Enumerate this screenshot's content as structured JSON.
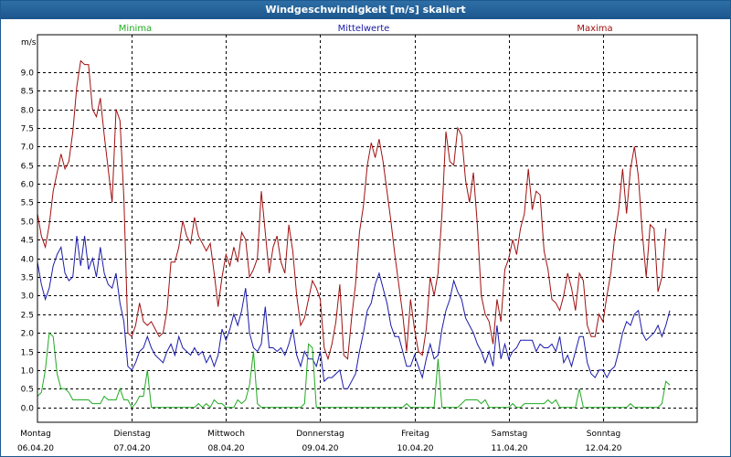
{
  "window": {
    "title": "Windgeschwindigkeit [m/s] skaliert"
  },
  "legend": {
    "min": "Minima",
    "mean": "Mittelwerte",
    "max": "Maxima"
  },
  "colors": {
    "min": "#22aa22",
    "mean": "#1a1aaa",
    "max": "#a01010",
    "grid": "#000000",
    "title_bar": "#1c578d"
  },
  "chart_data": {
    "type": "line",
    "ylabel": "m/s",
    "ylim": [
      -0.4,
      10.0
    ],
    "y_ticks": [
      "0.0",
      "0.5",
      "1.0",
      "1.5",
      "2.0",
      "2.5",
      "3.0",
      "3.5",
      "4.0",
      "4.5",
      "5.0",
      "5.5",
      "6.0",
      "6.5",
      "7.0",
      "7.5",
      "8.0",
      "8.5",
      "9.0"
    ],
    "xlim": [
      0,
      7.0
    ],
    "day_labels": [
      {
        "day": "Montag",
        "date": "06.04.20"
      },
      {
        "day": "Dienstag",
        "date": "07.04.20"
      },
      {
        "day": "Mittwoch",
        "date": "08.04.20"
      },
      {
        "day": "Donnerstag",
        "date": "09.04.20"
      },
      {
        "day": "Freitag",
        "date": "10.04.20"
      },
      {
        "day": "Samstag",
        "date": "11.04.20"
      },
      {
        "day": "Sonntag",
        "date": "12.04.20"
      }
    ],
    "grid": true,
    "series": [
      {
        "name": "Maxima",
        "key": "max",
        "x_step_days": 0.04167,
        "values": [
          5.2,
          4.6,
          4.3,
          4.9,
          5.8,
          6.3,
          6.8,
          6.4,
          6.6,
          7.4,
          8.6,
          9.3,
          9.2,
          9.2,
          8.0,
          7.8,
          8.3,
          7.3,
          6.4,
          5.5,
          8.0,
          7.7,
          5.6,
          2.0,
          1.9,
          2.2,
          2.8,
          2.3,
          2.2,
          2.3,
          2.1,
          1.9,
          2.0,
          2.6,
          3.9,
          3.9,
          4.3,
          5.0,
          4.6,
          4.4,
          5.1,
          4.6,
          4.4,
          4.2,
          4.4,
          3.6,
          2.7,
          3.5,
          4.1,
          3.8,
          4.3,
          3.9,
          4.7,
          4.5,
          3.5,
          3.7,
          4.0,
          5.8,
          4.7,
          3.6,
          4.3,
          4.6,
          3.9,
          3.6,
          4.9,
          4.2,
          3.0,
          2.2,
          2.4,
          2.9,
          3.4,
          3.2,
          2.9,
          1.6,
          1.3,
          1.7,
          2.3,
          3.3,
          1.4,
          1.3,
          2.4,
          3.3,
          4.7,
          5.4,
          6.5,
          7.1,
          6.7,
          7.2,
          6.6,
          5.8,
          5.0,
          4.1,
          3.3,
          2.5,
          1.5,
          2.9,
          2.1,
          1.5,
          1.4,
          2.1,
          3.5,
          3.0,
          3.6,
          5.2,
          7.4,
          6.6,
          6.5,
          7.5,
          7.3,
          6.1,
          5.5,
          6.3,
          4.9,
          3.0,
          2.5,
          2.3,
          1.7,
          2.9,
          2.3,
          3.7,
          4.0,
          4.5,
          4.1,
          4.8,
          5.2,
          6.4,
          5.3,
          5.8,
          5.7,
          4.2,
          3.7,
          2.9,
          2.8,
          2.6,
          3.0,
          3.6,
          3.2,
          2.6,
          3.6,
          3.4,
          2.2,
          1.9,
          1.9,
          2.5,
          2.3,
          3.0,
          3.6,
          4.6,
          5.3,
          6.4,
          5.2,
          6.4,
          7.0,
          6.2,
          4.7,
          3.5,
          4.9,
          4.8,
          3.1,
          3.5,
          4.8
        ]
      },
      {
        "name": "Mittelwerte",
        "key": "mean",
        "x_step_days": 0.04167,
        "values": [
          3.9,
          3.3,
          2.9,
          3.2,
          3.8,
          4.1,
          4.3,
          3.6,
          3.4,
          3.5,
          4.6,
          3.8,
          4.6,
          3.7,
          4.0,
          3.5,
          4.3,
          3.6,
          3.3,
          3.2,
          3.6,
          2.8,
          2.3,
          1.1,
          1.0,
          1.2,
          1.5,
          1.6,
          1.9,
          1.6,
          1.4,
          1.3,
          1.2,
          1.5,
          1.7,
          1.4,
          1.9,
          1.6,
          1.5,
          1.4,
          1.6,
          1.4,
          1.5,
          1.2,
          1.4,
          1.1,
          1.4,
          2.1,
          1.8,
          2.1,
          2.5,
          2.2,
          2.6,
          3.2,
          2.0,
          1.6,
          1.5,
          1.7,
          2.7,
          1.6,
          1.6,
          1.5,
          1.6,
          1.4,
          1.7,
          2.1,
          1.4,
          1.1,
          1.5,
          1.3,
          1.3,
          1.1,
          1.5,
          0.7,
          0.8,
          0.8,
          0.9,
          1.0,
          0.5,
          0.5,
          0.7,
          0.9,
          1.5,
          2.0,
          2.6,
          2.8,
          3.3,
          3.6,
          3.2,
          2.8,
          2.2,
          1.9,
          1.9,
          1.5,
          1.1,
          1.1,
          1.4,
          1.1,
          0.8,
          1.3,
          1.7,
          1.3,
          1.4,
          2.1,
          2.6,
          2.9,
          3.4,
          3.1,
          2.9,
          2.4,
          2.2,
          2.0,
          1.7,
          1.5,
          1.2,
          1.5,
          1.1,
          2.2,
          1.3,
          1.7,
          1.3,
          1.5,
          1.6,
          1.8,
          1.8,
          1.8,
          1.8,
          1.5,
          1.7,
          1.6,
          1.6,
          1.7,
          1.5,
          1.9,
          1.2,
          1.4,
          1.1,
          1.5,
          1.9,
          1.9,
          1.2,
          0.9,
          0.8,
          1.0,
          1.0,
          0.8,
          1.0,
          1.1,
          1.5,
          2.0,
          2.3,
          2.2,
          2.5,
          2.6,
          2.0,
          1.8,
          1.9,
          2.0,
          2.2,
          1.9,
          2.2,
          2.6
        ]
      },
      {
        "name": "Minima",
        "key": "min",
        "x_step_days": 0.04167,
        "values": [
          0.3,
          0.4,
          1.0,
          2.0,
          1.9,
          0.9,
          0.5,
          0.5,
          0.4,
          0.2,
          0.2,
          0.2,
          0.2,
          0.2,
          0.1,
          0.1,
          0.1,
          0.3,
          0.2,
          0.2,
          0.2,
          0.5,
          0.2,
          0.2,
          0.0,
          0.1,
          0.3,
          0.3,
          1.0,
          0.0,
          0.0,
          0.0,
          0.0,
          0.0,
          0.0,
          0.0,
          0.0,
          0.0,
          0.0,
          0.0,
          0.0,
          0.1,
          0.0,
          0.1,
          0.0,
          0.2,
          0.1,
          0.1,
          0.0,
          0.0,
          0.0,
          0.2,
          0.1,
          0.2,
          0.6,
          1.5,
          0.1,
          0.0,
          0.0,
          0.0,
          0.0,
          0.0,
          0.0,
          0.0,
          0.0,
          0.0,
          0.0,
          0.0,
          0.1,
          1.7,
          1.6,
          0.0,
          0.0,
          0.0,
          0.0,
          0.0,
          0.0,
          0.0,
          0.0,
          0.0,
          0.0,
          0.0,
          0.0,
          0.0,
          0.0,
          0.0,
          0.0,
          0.0,
          0.0,
          0.0,
          0.0,
          0.0,
          0.0,
          0.0,
          0.1,
          0.0,
          0.0,
          0.0,
          0.0,
          0.0,
          0.0,
          0.0,
          1.3,
          0.0,
          0.0,
          0.0,
          0.0,
          0.0,
          0.1,
          0.2,
          0.2,
          0.2,
          0.2,
          0.1,
          0.2,
          0.0,
          0.0,
          0.0,
          0.0,
          0.0,
          0.0,
          0.1,
          0.0,
          0.0,
          0.1,
          0.1,
          0.1,
          0.1,
          0.1,
          0.1,
          0.2,
          0.1,
          0.2,
          0.0,
          0.0,
          0.0,
          0.0,
          0.0,
          0.5,
          0.0,
          0.0,
          0.0,
          0.0,
          0.0,
          0.0,
          0.0,
          0.0,
          0.0,
          0.0,
          0.0,
          0.0,
          0.1,
          0.0,
          0.0,
          0.0,
          0.0,
          0.0,
          0.0,
          0.0,
          0.1,
          0.7,
          0.6
        ]
      }
    ]
  }
}
